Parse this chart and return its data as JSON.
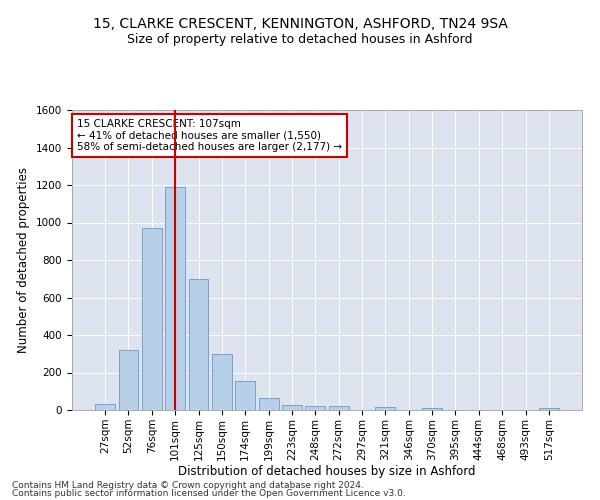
{
  "title": "15, CLARKE CRESCENT, KENNINGTON, ASHFORD, TN24 9SA",
  "subtitle": "Size of property relative to detached houses in Ashford",
  "xlabel": "Distribution of detached houses by size in Ashford",
  "ylabel": "Number of detached properties",
  "categories": [
    "27sqm",
    "52sqm",
    "76sqm",
    "101sqm",
    "125sqm",
    "150sqm",
    "174sqm",
    "199sqm",
    "223sqm",
    "248sqm",
    "272sqm",
    "297sqm",
    "321sqm",
    "346sqm",
    "370sqm",
    "395sqm",
    "444sqm",
    "468sqm",
    "493sqm",
    "517sqm"
  ],
  "values": [
    30,
    320,
    970,
    1190,
    700,
    300,
    155,
    65,
    28,
    20,
    20,
    0,
    15,
    0,
    10,
    0,
    0,
    0,
    0,
    10
  ],
  "bar_color": "#b8cfe8",
  "bar_edge_color": "#6699cc",
  "property_line_x": 3.0,
  "property_line_color": "#cc0000",
  "annotation_text": "15 CLARKE CRESCENT: 107sqm\n← 41% of detached houses are smaller (1,550)\n58% of semi-detached houses are larger (2,177) →",
  "annotation_box_color": "#cc0000",
  "ylim": [
    0,
    1600
  ],
  "yticks": [
    0,
    200,
    400,
    600,
    800,
    1000,
    1200,
    1400,
    1600
  ],
  "background_color": "#dde4f0",
  "grid_color": "#ffffff",
  "fig_background": "#ffffff",
  "footer_line1": "Contains HM Land Registry data © Crown copyright and database right 2024.",
  "footer_line2": "Contains public sector information licensed under the Open Government Licence v3.0.",
  "title_fontsize": 10,
  "subtitle_fontsize": 9,
  "axis_label_fontsize": 8.5,
  "tick_fontsize": 7.5,
  "annotation_fontsize": 7.5,
  "footer_fontsize": 6.5
}
